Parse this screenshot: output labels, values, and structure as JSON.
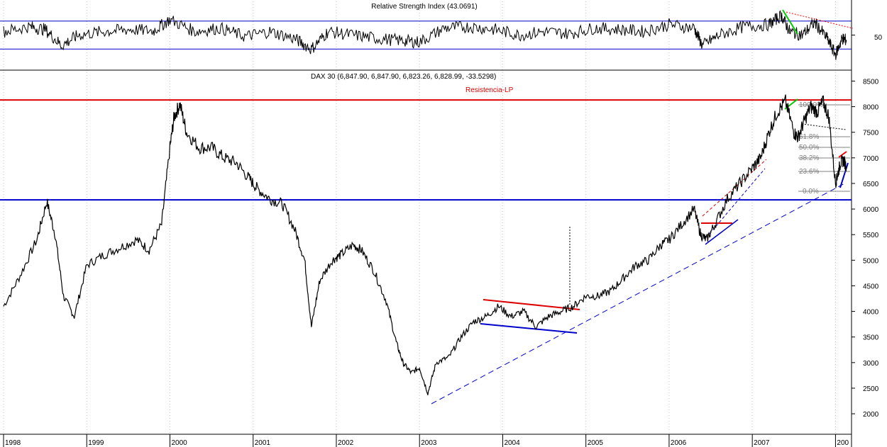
{
  "rsi_panel": {
    "title": "Relative Strength Index (43.0691)",
    "ylim": [
      0,
      100
    ],
    "bands": [
      70,
      30
    ],
    "tick_labels": [
      "50"
    ],
    "colors": {
      "bands": "#0000cc",
      "line": "#000000",
      "green_trend": "#00cc00",
      "red_trend": "#ff0000"
    }
  },
  "price_panel": {
    "title": "DAX 30 (6,847.90, 6,847.90, 6,823.26, 6,828.99, -33.5298)",
    "resistance_label": "Resistencia-LP",
    "ylim": [
      1600,
      8700
    ],
    "y_ticks": [
      2000,
      2500,
      3000,
      3500,
      4000,
      4500,
      5000,
      5500,
      6000,
      6500,
      7000,
      7500,
      8000,
      8500
    ],
    "horizontal_lines": [
      {
        "value": 8130,
        "color": "#dd0000"
      },
      {
        "value": 6180,
        "color": "#0000cc"
      }
    ],
    "fib_labels": [
      "100.0%",
      "61.8%",
      "50.0%",
      "38.2%",
      "23.6%",
      "0.0%"
    ],
    "colors": {
      "price": "#000000",
      "red": "#ff0000",
      "blue": "#0000cc",
      "green": "#00cc00",
      "grid": "#c8c8c8"
    }
  },
  "x_axis": {
    "labels": [
      "1998",
      "1999",
      "2000",
      "2001",
      "2002",
      "2003",
      "2004",
      "2005",
      "2006",
      "2007",
      "200"
    ]
  },
  "chart_data": {
    "type": "line",
    "title": "DAX 30 (6,847.90, 6,847.90, 6,823.26, 6,828.99, -33.5298)",
    "xlabel": "",
    "ylabel": "",
    "xlim": [
      1998.0,
      2008.15
    ],
    "ylim": [
      1600,
      8700
    ],
    "grid": true,
    "series": [
      {
        "x": [
          1998.0,
          1998.2,
          1998.4,
          1998.52,
          1998.62,
          1998.72,
          1998.85,
          1999.0,
          1999.2,
          1999.4,
          1999.6,
          1999.75,
          1999.9,
          2000.0,
          2000.05,
          2000.12,
          2000.2,
          2000.35,
          2000.5,
          2000.65,
          2000.8,
          2000.95,
          2001.05,
          2001.2,
          2001.35,
          2001.5,
          2001.62,
          2001.7,
          2001.8,
          2001.95,
          2002.05,
          2002.2,
          2002.3,
          2002.45,
          2002.6,
          2002.72,
          2002.8,
          2002.9,
          2003.0,
          2003.1,
          2003.2,
          2003.35,
          2003.5,
          2003.65,
          2003.8,
          2003.95,
          2004.1,
          2004.25,
          2004.4,
          2004.55,
          2004.7,
          2004.85,
          2005.0,
          2005.15,
          2005.3,
          2005.45,
          2005.6,
          2005.75,
          2005.9,
          2006.0,
          2006.15,
          2006.3,
          2006.38,
          2006.45,
          2006.55,
          2006.7,
          2006.85,
          2007.0,
          2007.1,
          2007.2,
          2007.3,
          2007.4,
          2007.5,
          2007.55,
          2007.62,
          2007.7,
          2007.78,
          2007.85,
          2007.92,
          2008.0,
          2008.03,
          2008.06,
          2008.1,
          2008.13
        ],
        "values": [
          4100,
          4700,
          5400,
          6150,
          5500,
          4300,
          3900,
          4900,
          5100,
          5250,
          5400,
          5200,
          5700,
          7200,
          7800,
          8050,
          7500,
          7200,
          7200,
          7000,
          6900,
          6600,
          6400,
          6200,
          6100,
          5600,
          5000,
          3700,
          4600,
          5000,
          5100,
          5300,
          5200,
          4800,
          4200,
          3400,
          3000,
          2800,
          2900,
          2400,
          3000,
          3100,
          3500,
          3800,
          3900,
          4100,
          3900,
          4000,
          3700,
          3900,
          4000,
          4100,
          4300,
          4300,
          4400,
          4650,
          4900,
          5000,
          5300,
          5400,
          5700,
          6000,
          5500,
          5400,
          5700,
          6200,
          6500,
          6800,
          7000,
          7500,
          7900,
          8100,
          7500,
          7400,
          7700,
          8000,
          7900,
          8100,
          7800,
          6500,
          6700,
          6900,
          6950,
          6829
        ]
      }
    ],
    "rsi": {
      "name": "Relative Strength Index",
      "last": 43.0691,
      "x": [
        1998.0,
        1998.3,
        1998.5,
        1998.7,
        1998.9,
        1999.2,
        1999.5,
        1999.8,
        2000.0,
        2000.3,
        2000.6,
        2000.9,
        2001.2,
        2001.5,
        2001.7,
        2001.9,
        2002.2,
        2002.5,
        2002.8,
        2003.0,
        2003.3,
        2003.6,
        2003.9,
        2004.2,
        2004.5,
        2004.8,
        2005.1,
        2005.4,
        2005.7,
        2006.0,
        2006.3,
        2006.4,
        2006.6,
        2006.9,
        2007.2,
        2007.35,
        2007.45,
        2007.6,
        2007.75,
        2007.9,
        2008.0,
        2008.08,
        2008.13
      ],
      "values": [
        55,
        62,
        58,
        35,
        50,
        55,
        58,
        56,
        72,
        55,
        60,
        48,
        55,
        45,
        30,
        55,
        50,
        45,
        42,
        40,
        60,
        62,
        58,
        50,
        55,
        52,
        60,
        58,
        55,
        65,
        60,
        35,
        50,
        62,
        65,
        78,
        55,
        50,
        68,
        45,
        22,
        45,
        43.0691
      ]
    },
    "annotations": [
      "Resistencia-LP",
      "100.0%",
      "61.8%",
      "50.0%",
      "38.2%",
      "23.6%",
      "0.0%"
    ]
  }
}
